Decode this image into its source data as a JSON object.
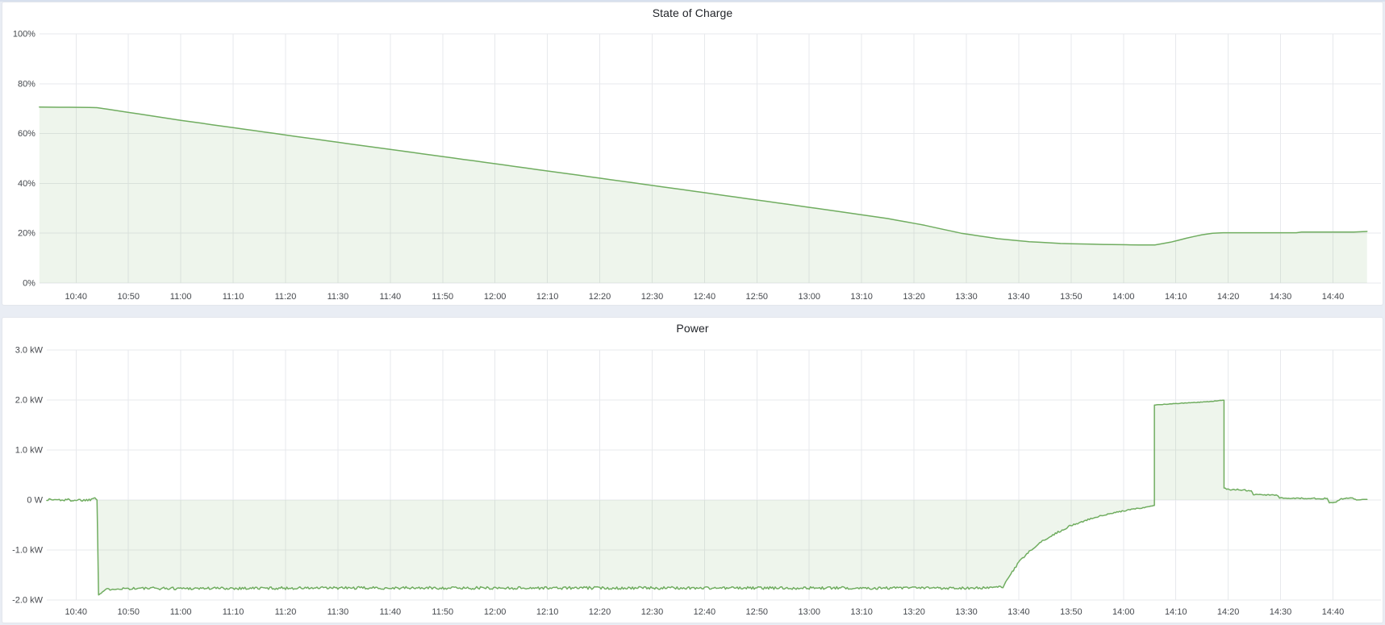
{
  "colors": {
    "page_bg": "#e9edf4",
    "panel_bg": "#ffffff",
    "panel_border": "#e3e6ec",
    "top_strip": "#d8e0ee",
    "title_text": "#1f2227",
    "axis_text": "#45484d",
    "grid": "#e7e9ec",
    "series_green_line": "#70ad60",
    "series_green_fill": "rgba(112,173,96,0.12)"
  },
  "chart_data": [
    {
      "type": "area",
      "title": "State of Charge",
      "unit": "%",
      "x_type": "time",
      "x_unit": "minutes since 10:33",
      "x_window": [
        "10:33",
        "14:50"
      ],
      "xticks": [
        "10:40",
        "10:50",
        "11:00",
        "11:10",
        "11:20",
        "11:30",
        "11:40",
        "11:50",
        "12:00",
        "12:10",
        "12:20",
        "12:30",
        "12:40",
        "12:50",
        "13:00",
        "13:10",
        "13:20",
        "13:30",
        "13:40",
        "13:50",
        "14:00",
        "14:10",
        "14:20",
        "14:30",
        "14:40"
      ],
      "yticks": [
        "100%",
        "80%",
        "60%",
        "40%",
        "20%",
        "0%"
      ],
      "ylim": [
        100,
        0
      ],
      "grid": true,
      "legend": false,
      "series": [
        {
          "name": "State of Charge",
          "points": [
            [
              0,
              70.6
            ],
            [
              9.5,
              70.5
            ],
            [
              11,
              70.4
            ],
            [
              27,
              65.3
            ],
            [
              57,
              56.5
            ],
            [
              87,
              47.9
            ],
            [
              117,
              39.2
            ],
            [
              147,
              30.4
            ],
            [
              162,
              25.9
            ],
            [
              169,
              23.2
            ],
            [
              176,
              20.0
            ],
            [
              183,
              17.8
            ],
            [
              189,
              16.6
            ],
            [
              195,
              15.9
            ],
            [
              203,
              15.5
            ],
            [
              210,
              15.3
            ],
            [
              213,
              15.3
            ],
            [
              216,
              16.4
            ],
            [
              219,
              18.0
            ],
            [
              222,
              19.4
            ],
            [
              224,
              20.0
            ],
            [
              226,
              20.2
            ],
            [
              240,
              20.2
            ],
            [
              241,
              20.45
            ],
            [
              251,
              20.45
            ],
            [
              253.5,
              20.7
            ]
          ]
        }
      ]
    },
    {
      "type": "area",
      "title": "Power",
      "unit": "kW",
      "x_type": "time",
      "x_unit": "minutes since 10:33",
      "x_window": [
        "10:33",
        "14:50"
      ],
      "xticks": [
        "10:40",
        "10:50",
        "11:00",
        "11:10",
        "11:20",
        "11:30",
        "11:40",
        "11:50",
        "12:00",
        "12:10",
        "12:20",
        "12:30",
        "12:40",
        "12:50",
        "13:00",
        "13:10",
        "13:20",
        "13:30",
        "13:40",
        "13:50",
        "14:00",
        "14:10",
        "14:20",
        "14:30",
        "14:40"
      ],
      "yticks": [
        "3.0 kW",
        "2.0 kW",
        "1.0 kW",
        "0 W",
        "-1.0 kW",
        "-2.0 kW"
      ],
      "ylim": [
        3,
        -2
      ],
      "grid": true,
      "legend": false,
      "noise_seed": 1337,
      "series": [
        {
          "name": "Power",
          "points": [
            [
              1.4,
              0.01,
              0.028
            ],
            [
              5,
              0.0,
              0.028
            ],
            [
              9.5,
              0.0,
              0.028
            ],
            [
              10.6,
              0.05,
              0.01
            ],
            [
              11.0,
              0.0,
              0
            ],
            [
              11.3,
              -1.9,
              0
            ],
            [
              11.8,
              -1.86,
              0.01
            ],
            [
              12.5,
              -1.8,
              0.02
            ],
            [
              14,
              -1.77,
              0.028
            ],
            [
              60,
              -1.76,
              0.028
            ],
            [
              120,
              -1.76,
              0.028
            ],
            [
              180,
              -1.76,
              0.026
            ],
            [
              184,
              -1.74,
              0.02
            ],
            [
              185.5,
              -1.48,
              0.02
            ],
            [
              187,
              -1.25,
              0.02
            ],
            [
              189,
              -1.03,
              0.02
            ],
            [
              191.5,
              -0.83,
              0.02
            ],
            [
              194,
              -0.67,
              0.018
            ],
            [
              197,
              -0.51,
              0.018
            ],
            [
              200,
              -0.4,
              0.016
            ],
            [
              203,
              -0.31,
              0.014
            ],
            [
              206,
              -0.24,
              0.013
            ],
            [
              209,
              -0.18,
              0.012
            ],
            [
              212,
              -0.13,
              0.01
            ],
            [
              212.9,
              -0.11,
              0.008
            ],
            [
              212.9,
              1.9,
              0.005
            ],
            [
              215,
              1.915,
              0.005
            ],
            [
              219,
              1.94,
              0.005
            ],
            [
              223,
              1.965,
              0.005
            ],
            [
              226.2,
              2.0,
              0.004
            ],
            [
              226.2,
              0.24,
              0.008
            ],
            [
              227.2,
              0.2,
              0.014
            ],
            [
              229,
              0.21,
              0.014
            ],
            [
              231.4,
              0.185,
              0.012
            ],
            [
              231.8,
              0.11,
              0.009
            ],
            [
              236.4,
              0.095,
              0.009
            ],
            [
              236.8,
              0.04,
              0.009
            ],
            [
              241,
              0.035,
              0.011
            ],
            [
              245.9,
              0.03,
              0.011
            ],
            [
              246.3,
              -0.05,
              0.009
            ],
            [
              247.6,
              -0.045,
              0.009
            ],
            [
              248.4,
              0.02,
              0.011
            ],
            [
              250.5,
              0.045,
              0.009
            ],
            [
              251.5,
              0.0,
              0.009
            ],
            [
              253.5,
              0.02,
              0.009
            ]
          ]
        }
      ]
    }
  ]
}
